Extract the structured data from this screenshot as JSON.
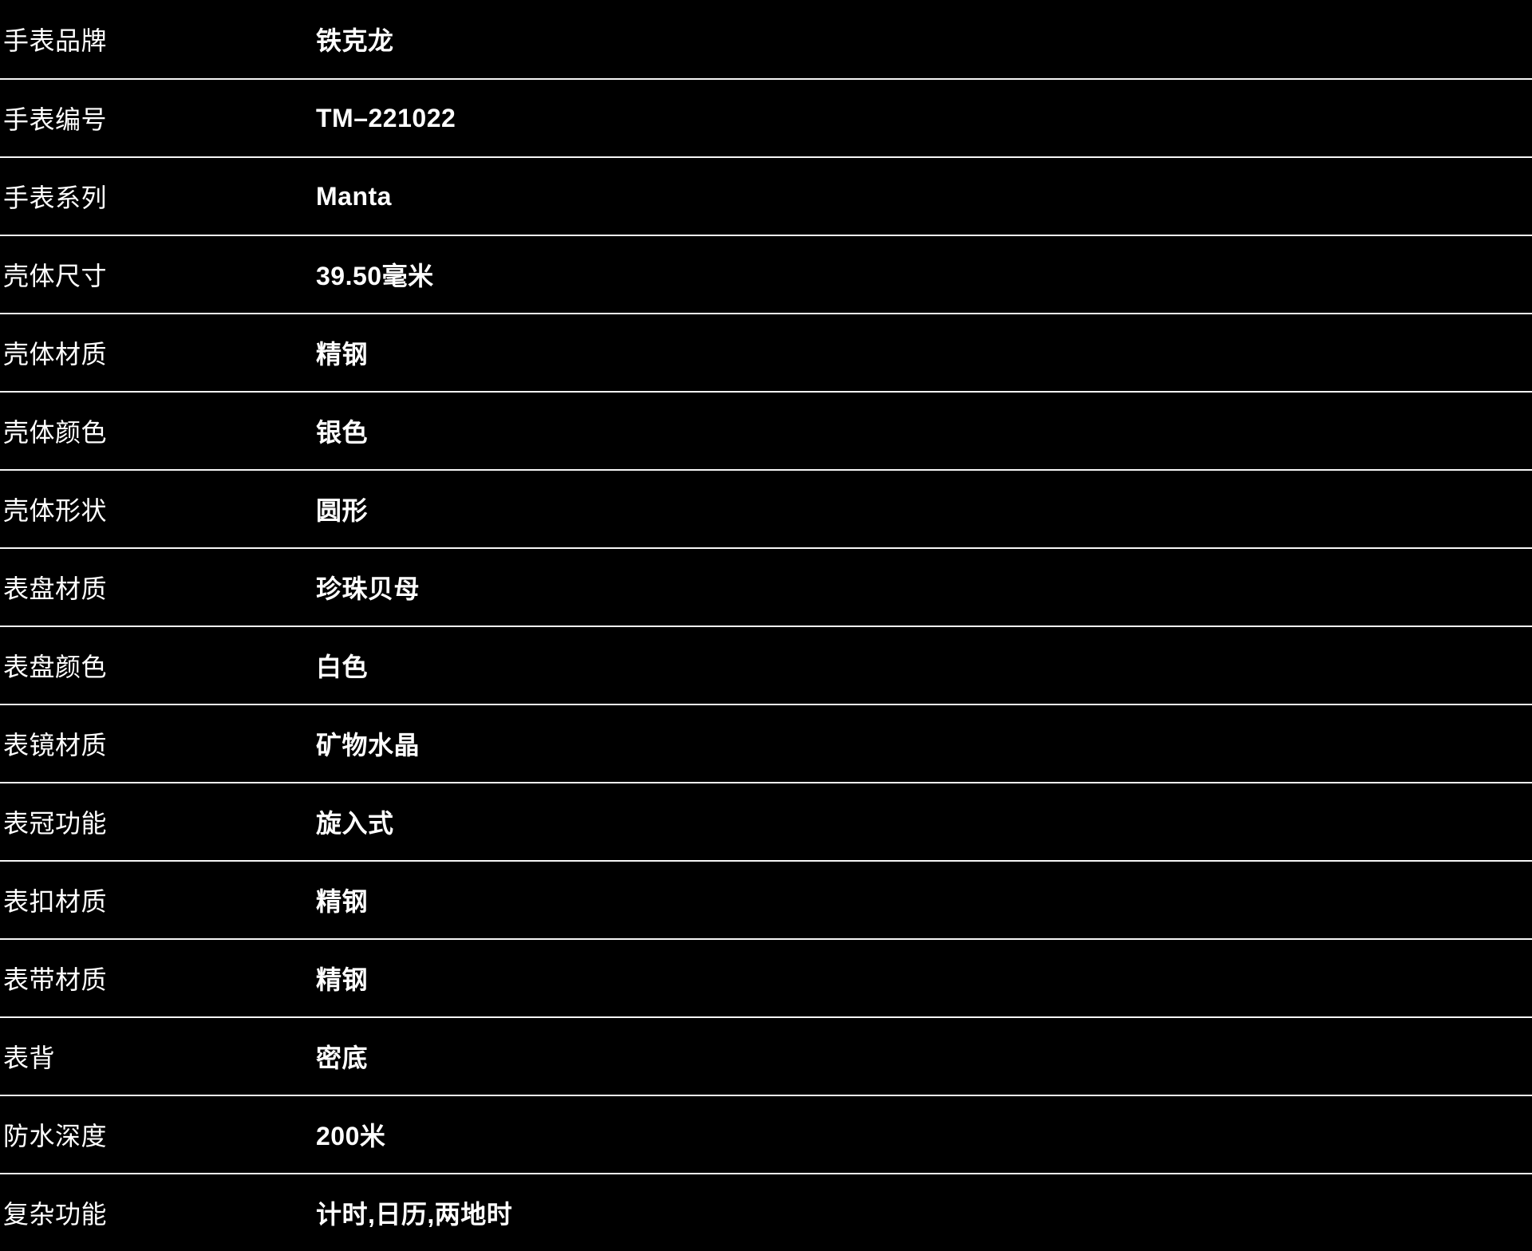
{
  "colors": {
    "background": "#000000",
    "text": "#ffffff",
    "divider": "#f7f7f7"
  },
  "table": {
    "rows": [
      {
        "label": "手表品牌",
        "value": "铁克龙"
      },
      {
        "label": "手表编号",
        "value": "TM–221022"
      },
      {
        "label": "手表系列",
        "value": "Manta"
      },
      {
        "label": "壳体尺寸",
        "value": "39.50毫米"
      },
      {
        "label": "壳体材质",
        "value": "精钢"
      },
      {
        "label": "壳体颜色",
        "value": "银色"
      },
      {
        "label": "壳体形状",
        "value": "圆形"
      },
      {
        "label": "表盘材质",
        "value": "珍珠贝母"
      },
      {
        "label": "表盘颜色",
        "value": "白色"
      },
      {
        "label": "表镜材质",
        "value": "矿物水晶"
      },
      {
        "label": "表冠功能",
        "value": "旋入式"
      },
      {
        "label": "表扣材质",
        "value": "精钢"
      },
      {
        "label": "表带材质",
        "value": "精钢"
      },
      {
        "label": "表背",
        "value": "密底"
      },
      {
        "label": "防水深度",
        "value": "200米"
      },
      {
        "label": "复杂功能",
        "value": "计时,日历,两地时"
      }
    ]
  }
}
